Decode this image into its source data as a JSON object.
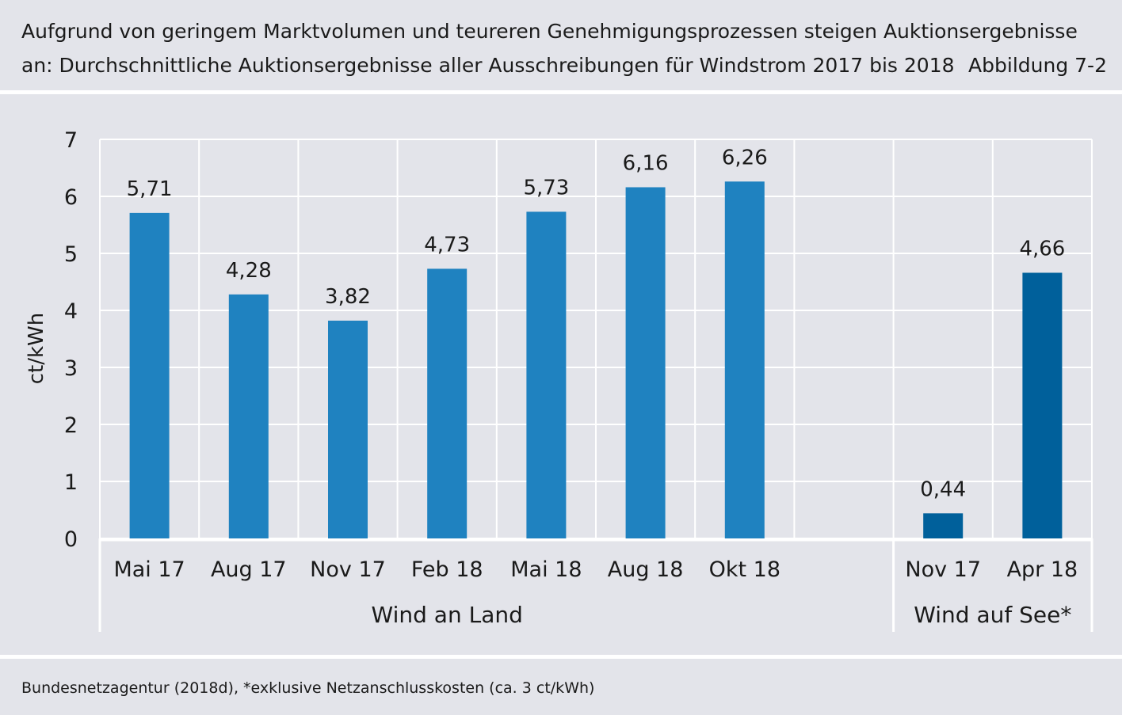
{
  "header": {
    "title_line1": "Aufgrund von geringem Marktvolumen und teureren Genehmigungsprozessen steigen Auktionsergebnisse",
    "title_line2": "an: Durchschnittliche Auktionsergebnisse aller Ausschreibungen für Windstrom 2017 bis 2018",
    "figure_label": "Abbildung 7-2"
  },
  "source": "Bundesnetzagentur (2018d), *exklusive Netzanschlusskosten (ca. 3 ct/kWh)",
  "colors": {
    "onshore": "#1f82c0",
    "offshore": "#00609b",
    "grid": "#ffffff",
    "background": "#e3e4ea"
  },
  "chart_data": {
    "type": "bar",
    "ylabel": "ct/kWh",
    "ylim": [
      0,
      7
    ],
    "yticks": [
      "0",
      "1",
      "2",
      "3",
      "4",
      "5",
      "6",
      "7"
    ],
    "grid": true,
    "groups": [
      {
        "name": "Wind an Land",
        "categories": [
          "Mai 17",
          "Aug 17",
          "Nov 17",
          "Feb 18",
          "Mai 18",
          "Aug 18",
          "Okt 18"
        ],
        "values": [
          5.71,
          4.28,
          3.82,
          4.73,
          5.73,
          6.16,
          6.26
        ],
        "value_labels": [
          "5,71",
          "4,28",
          "3,82",
          "4,73",
          "5,73",
          "6,16",
          "6,26"
        ]
      },
      {
        "name": "Wind auf See*",
        "categories": [
          "Nov 17",
          "Apr 18"
        ],
        "values": [
          0.44,
          4.66
        ],
        "value_labels": [
          "0,44",
          "4,66"
        ]
      }
    ]
  }
}
